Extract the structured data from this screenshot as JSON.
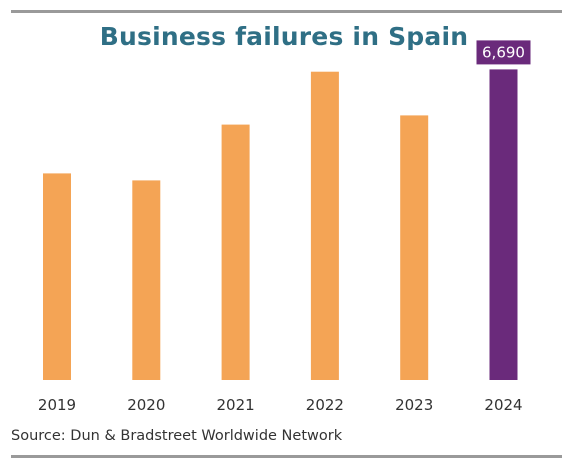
{
  "chart_data": {
    "type": "bar",
    "title": "Business failures in Spain",
    "categories": [
      "2019",
      "2020",
      "2021",
      "2022",
      "2023",
      "2024"
    ],
    "values": [
      4450,
      4300,
      5500,
      6640,
      5700,
      6690
    ],
    "ylim": [
      0,
      7000
    ],
    "xlabel": "",
    "ylabel": "",
    "data_labels": [
      {
        "category": "2024",
        "text": "6,690"
      }
    ],
    "grid": false,
    "legend": "none",
    "colors": {
      "default": "#f4a455",
      "highlight": "#6a2a7b",
      "title": "#2f6f85"
    },
    "highlight_category": "2024"
  },
  "source": "Source: Dun & Bradstreet Worldwide Network"
}
